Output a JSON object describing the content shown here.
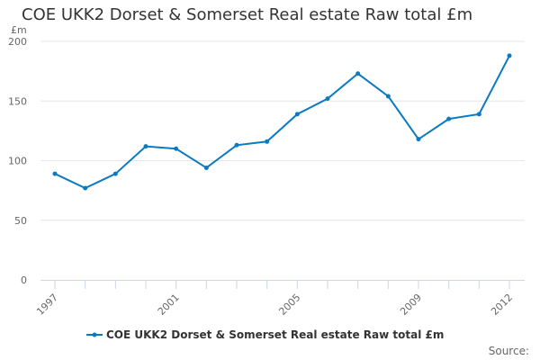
{
  "chart_data": {
    "type": "line",
    "title": "COE UKK2 Dorset & Somerset Real estate Raw total £m",
    "ylabel": "£m",
    "xlabel": "",
    "x": [
      1997,
      1998,
      1999,
      2000,
      2001,
      2002,
      2003,
      2004,
      2005,
      2006,
      2007,
      2008,
      2009,
      2010,
      2011,
      2012
    ],
    "x_tick_labels": [
      "1997",
      "2001",
      "2005",
      "2009",
      "2012"
    ],
    "y_ticks": [
      0,
      50,
      100,
      150,
      200
    ],
    "ylim": [
      0,
      200
    ],
    "grid": true,
    "legend_position": "bottom",
    "series": [
      {
        "name": "COE UKK2 Dorset & Somerset Real estate Raw total £m",
        "color": "#0a7bc1",
        "values": [
          89,
          77,
          89,
          112,
          110,
          94,
          113,
          116,
          139,
          152,
          173,
          154,
          118,
          135,
          139,
          188
        ]
      }
    ]
  },
  "source_label": "Source:"
}
